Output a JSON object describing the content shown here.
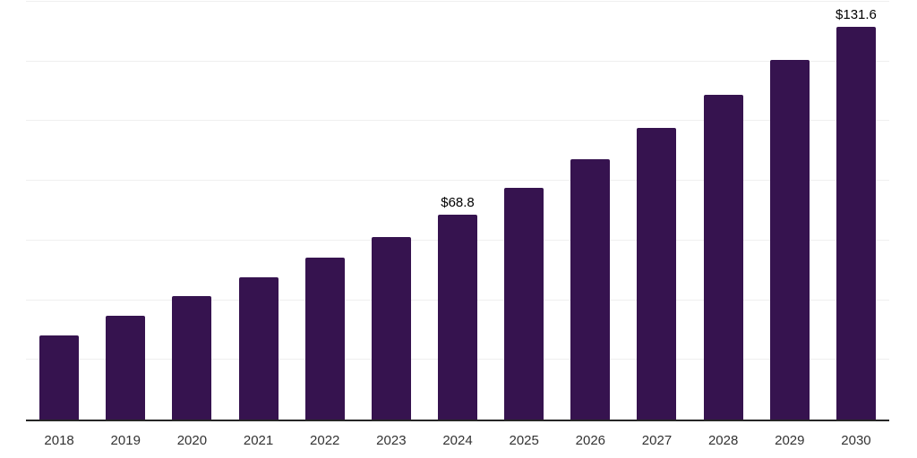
{
  "chart_data": {
    "type": "bar",
    "title": "",
    "xlabel": "",
    "ylabel": "",
    "categories": [
      "2018",
      "2019",
      "2020",
      "2021",
      "2022",
      "2023",
      "2024",
      "2025",
      "2026",
      "2027",
      "2028",
      "2029",
      "2030"
    ],
    "values": [
      28.1,
      34.7,
      41.3,
      47.6,
      54.4,
      61.3,
      68.8,
      77.6,
      87.2,
      97.7,
      108.8,
      120.4,
      131.6
    ],
    "point_labels": [
      "",
      "",
      "",
      "",
      "",
      "",
      "$68.8",
      "",
      "",
      "",
      "",
      "",
      "$131.6"
    ],
    "ylim": [
      0,
      140
    ],
    "grid_interval": 20,
    "grid_on": true,
    "legend": "none",
    "colors": {
      "bar": "#36134F",
      "axis_line": "#262626",
      "gridline": "#efefef",
      "x_tick_label": "#333333",
      "value_label": "#000000",
      "background": "#ffffff"
    }
  }
}
